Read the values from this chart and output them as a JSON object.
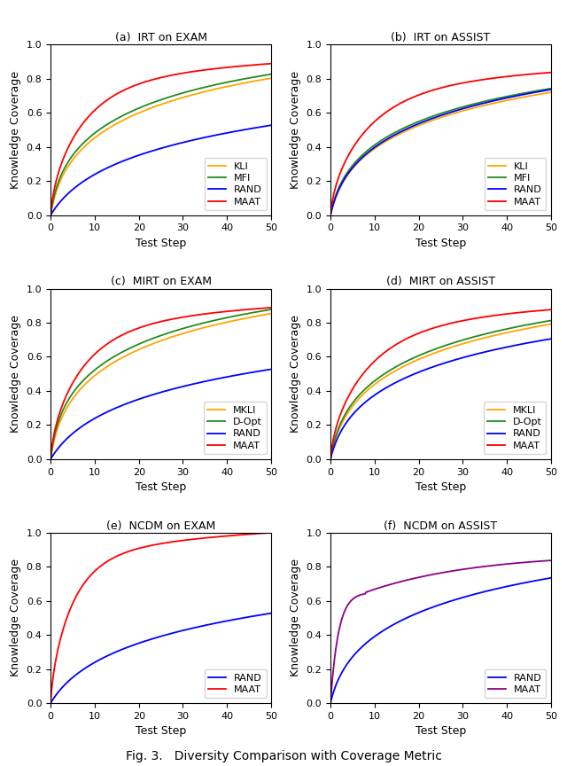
{
  "subplots": [
    {
      "title": "(a)  IRT on EXAM",
      "legend_labels": [
        "KLI",
        "MFI",
        "RAND",
        "MAAT"
      ],
      "line_colors": [
        "#FFA500",
        "#228B22",
        "#0000FF",
        "#FF0000"
      ],
      "curve_params": {
        "KLI": [
          0.82,
          0.18,
          0.55
        ],
        "MFI": [
          0.84,
          0.2,
          0.6
        ],
        "RAND": [
          0.54,
          0.07,
          0.5
        ],
        "MAAT": [
          0.89,
          0.5,
          0.85
        ]
      }
    },
    {
      "title": "(b)  IRT on ASSIST",
      "legend_labels": [
        "KLI",
        "MFI",
        "RAND",
        "MAAT"
      ],
      "line_colors": [
        "#FFA500",
        "#228B22",
        "#0000FF",
        "#FF0000"
      ],
      "curve_params": {
        "KLI": [
          0.74,
          0.16,
          0.52
        ],
        "MFI": [
          0.76,
          0.18,
          0.55
        ],
        "RAND": [
          0.76,
          0.15,
          0.52
        ],
        "MAAT": [
          0.84,
          0.38,
          0.8
        ]
      }
    },
    {
      "title": "(c)  MIRT on EXAM",
      "legend_labels": [
        "MKLI",
        "D-Opt",
        "RAND",
        "MAAT"
      ],
      "line_colors": [
        "#FFA500",
        "#228B22",
        "#0000FF",
        "#FF0000"
      ],
      "curve_params": {
        "MKLI": [
          0.87,
          0.19,
          0.58
        ],
        "D-Opt": [
          0.89,
          0.24,
          0.65
        ],
        "RAND": [
          0.54,
          0.07,
          0.5
        ],
        "MAAT": [
          0.89,
          0.52,
          0.87
        ]
      }
    },
    {
      "title": "(d)  MIRT on ASSIST",
      "legend_labels": [
        "MKLI",
        "D-Opt",
        "RAND",
        "MAAT"
      ],
      "line_colors": [
        "#FFA500",
        "#228B22",
        "#0000FF",
        "#FF0000"
      ],
      "curve_params": {
        "MKLI": [
          0.81,
          0.17,
          0.55
        ],
        "D-Opt": [
          0.83,
          0.19,
          0.58
        ],
        "RAND": [
          0.73,
          0.14,
          0.52
        ],
        "MAAT": [
          0.88,
          0.4,
          0.82
        ]
      }
    },
    {
      "title": "(e)  NCDM on EXAM",
      "legend_labels": [
        "RAND",
        "MAAT"
      ],
      "line_colors": [
        "#0000FF",
        "#FF0000"
      ],
      "curve_params": {
        "RAND": [
          0.54,
          0.07,
          0.5
        ],
        "MAAT": [
          1.0,
          0.65,
          0.9
        ]
      }
    },
    {
      "title": "(f)  NCDM on ASSIST",
      "legend_labels": [
        "RAND",
        "MAAT"
      ],
      "line_colors": [
        "#0000FF",
        "#8B008B"
      ],
      "curve_params": {
        "RAND": [
          0.76,
          0.15,
          0.55
        ],
        "MAAT": [
          0.88,
          0.48,
          0.85
        ]
      }
    }
  ],
  "xlabel": "Test Step",
  "ylabel": "Knowledge Coverage",
  "fig_title": "Fig. 3.   Diversity Comparison with Coverage Metric",
  "xlim": [
    0,
    50
  ],
  "ylim": [
    0.0,
    1.0
  ],
  "xticks": [
    0,
    10,
    20,
    30,
    40,
    50
  ],
  "yticks": [
    0.0,
    0.2,
    0.4,
    0.6,
    0.8,
    1.0
  ]
}
